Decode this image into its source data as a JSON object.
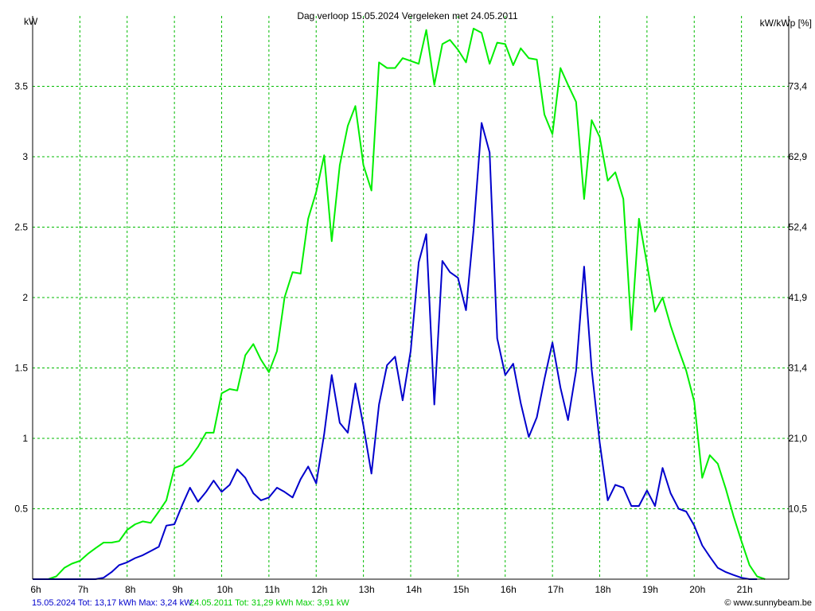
{
  "chart_data": {
    "type": "line",
    "title": "Dag  verloop 15.05.2024   Vergeleken met 24.05.2011",
    "ylabel_left": "kW",
    "ylabel_right": "kW/kWp [%]",
    "xlim": [
      6,
      22
    ],
    "ylim": [
      0,
      4.0
    ],
    "x_ticks": [
      {
        "value": 6,
        "label": "6h"
      },
      {
        "value": 7,
        "label": "7h"
      },
      {
        "value": 8,
        "label": "8h"
      },
      {
        "value": 9,
        "label": "9h"
      },
      {
        "value": 10,
        "label": "10h"
      },
      {
        "value": 11,
        "label": "11h"
      },
      {
        "value": 12,
        "label": "12h"
      },
      {
        "value": 13,
        "label": "13h"
      },
      {
        "value": 14,
        "label": "14h"
      },
      {
        "value": 15,
        "label": "15h"
      },
      {
        "value": 16,
        "label": "16h"
      },
      {
        "value": 17,
        "label": "17h"
      },
      {
        "value": 18,
        "label": "18h"
      },
      {
        "value": 19,
        "label": "19h"
      },
      {
        "value": 20,
        "label": "20h"
      },
      {
        "value": 21,
        "label": "21h"
      }
    ],
    "y_ticks_left": [
      {
        "value": 0.5,
        "label": "0.5"
      },
      {
        "value": 1,
        "label": "1"
      },
      {
        "value": 1.5,
        "label": "1.5"
      },
      {
        "value": 2,
        "label": "2"
      },
      {
        "value": 2.5,
        "label": "2.5"
      },
      {
        "value": 3,
        "label": "3"
      },
      {
        "value": 3.5,
        "label": "3.5"
      }
    ],
    "y_ticks_right": [
      {
        "value": 0.5,
        "label": "10,5"
      },
      {
        "value": 1,
        "label": "21,0"
      },
      {
        "value": 1.5,
        "label": "31,4"
      },
      {
        "value": 2,
        "label": "41,9"
      },
      {
        "value": 2.5,
        "label": "52,4"
      },
      {
        "value": 3,
        "label": "62,9"
      },
      {
        "value": 3.5,
        "label": "73,4"
      }
    ],
    "grid": true,
    "series": [
      {
        "name": "24.05.2011",
        "color": "#00ee00",
        "x": [
          6.0,
          6.33,
          6.5,
          6.67,
          6.83,
          7.0,
          7.17,
          7.33,
          7.5,
          7.67,
          7.83,
          8.0,
          8.17,
          8.33,
          8.5,
          8.67,
          8.83,
          9.0,
          9.17,
          9.33,
          9.5,
          9.67,
          9.83,
          10.0,
          10.17,
          10.33,
          10.5,
          10.67,
          10.83,
          11.0,
          11.17,
          11.33,
          11.5,
          11.67,
          11.83,
          12.0,
          12.17,
          12.33,
          12.5,
          12.67,
          12.83,
          13.0,
          13.17,
          13.33,
          13.5,
          13.67,
          13.83,
          14.0,
          14.17,
          14.33,
          14.5,
          14.67,
          14.83,
          15.0,
          15.17,
          15.33,
          15.5,
          15.67,
          15.83,
          16.0,
          16.17,
          16.33,
          16.5,
          16.67,
          16.83,
          17.0,
          17.17,
          17.33,
          17.5,
          17.67,
          17.83,
          18.0,
          18.17,
          18.33,
          18.5,
          18.67,
          18.83,
          19.0,
          19.17,
          19.33,
          19.5,
          19.67,
          19.83,
          20.0,
          20.17,
          20.33,
          20.5,
          20.67,
          20.83,
          21.0,
          21.17,
          21.33,
          21.5
        ],
        "values": [
          0.0,
          0.0,
          0.02,
          0.08,
          0.11,
          0.13,
          0.18,
          0.22,
          0.26,
          0.26,
          0.27,
          0.35,
          0.39,
          0.41,
          0.4,
          0.48,
          0.56,
          0.79,
          0.81,
          0.86,
          0.94,
          1.04,
          1.04,
          1.32,
          1.35,
          1.34,
          1.59,
          1.67,
          1.56,
          1.47,
          1.62,
          2.0,
          2.18,
          2.17,
          2.56,
          2.75,
          3.01,
          2.4,
          2.94,
          3.22,
          3.36,
          2.94,
          2.76,
          3.67,
          3.63,
          3.63,
          3.7,
          3.68,
          3.66,
          3.9,
          3.51,
          3.8,
          3.83,
          3.76,
          3.67,
          3.91,
          3.88,
          3.66,
          3.81,
          3.8,
          3.65,
          3.77,
          3.7,
          3.69,
          3.3,
          3.16,
          3.63,
          3.51,
          3.39,
          2.7,
          3.26,
          3.14,
          2.83,
          2.89,
          2.7,
          1.77,
          2.56,
          2.24,
          1.9,
          2.0,
          1.8,
          1.63,
          1.48,
          1.26,
          0.72,
          0.88,
          0.82,
          0.64,
          0.45,
          0.27,
          0.1,
          0.02,
          0.0
        ]
      },
      {
        "name": "15.05.2024",
        "color": "#0000cc",
        "x": [
          6.0,
          7.0,
          7.33,
          7.5,
          7.67,
          7.83,
          8.0,
          8.17,
          8.33,
          8.5,
          8.67,
          8.83,
          9.0,
          9.17,
          9.33,
          9.5,
          9.67,
          9.83,
          10.0,
          10.17,
          10.33,
          10.5,
          10.67,
          10.83,
          11.0,
          11.17,
          11.33,
          11.5,
          11.67,
          11.83,
          12.0,
          12.17,
          12.33,
          12.5,
          12.67,
          12.83,
          13.0,
          13.17,
          13.33,
          13.5,
          13.67,
          13.83,
          14.0,
          14.17,
          14.33,
          14.5,
          14.67,
          14.83,
          15.0,
          15.17,
          15.33,
          15.5,
          15.67,
          15.83,
          16.0,
          16.17,
          16.33,
          16.5,
          16.67,
          16.83,
          17.0,
          17.17,
          17.33,
          17.5,
          17.67,
          17.83,
          18.0,
          18.17,
          18.33,
          18.5,
          18.67,
          18.83,
          19.0,
          19.17,
          19.33,
          19.5,
          19.67,
          19.83,
          20.0,
          20.17,
          20.33,
          20.5,
          20.67,
          20.83,
          21.0,
          21.17,
          21.33
        ],
        "values": [
          0.0,
          0.0,
          0.0,
          0.01,
          0.05,
          0.1,
          0.12,
          0.15,
          0.17,
          0.2,
          0.23,
          0.38,
          0.39,
          0.53,
          0.65,
          0.55,
          0.62,
          0.7,
          0.62,
          0.67,
          0.78,
          0.72,
          0.61,
          0.56,
          0.58,
          0.65,
          0.62,
          0.58,
          0.71,
          0.8,
          0.68,
          1.03,
          1.45,
          1.11,
          1.04,
          1.39,
          1.09,
          0.75,
          1.24,
          1.52,
          1.58,
          1.27,
          1.62,
          2.25,
          2.45,
          1.24,
          2.26,
          2.18,
          2.14,
          1.91,
          2.48,
          3.24,
          3.03,
          1.71,
          1.45,
          1.53,
          1.25,
          1.01,
          1.15,
          1.42,
          1.68,
          1.36,
          1.13,
          1.48,
          2.22,
          1.49,
          0.97,
          0.56,
          0.67,
          0.65,
          0.52,
          0.52,
          0.63,
          0.52,
          0.79,
          0.61,
          0.5,
          0.48,
          0.38,
          0.24,
          0.16,
          0.08,
          0.05,
          0.03,
          0.01,
          0.0,
          0.0
        ]
      }
    ],
    "legend_items": [
      {
        "text": "15.05.2024 Tot: 13,17 kWh Max: 3,24 kW",
        "color": "#0000cc"
      },
      {
        "text": "24.05.2011 Tot: 31,29 kWh Max: 3,91 kW",
        "color": "#00cc00"
      }
    ],
    "legend_position": "bottom-left"
  },
  "credit": {
    "icon": "copyright-icon",
    "text": "© www.sunnybeam.be"
  }
}
